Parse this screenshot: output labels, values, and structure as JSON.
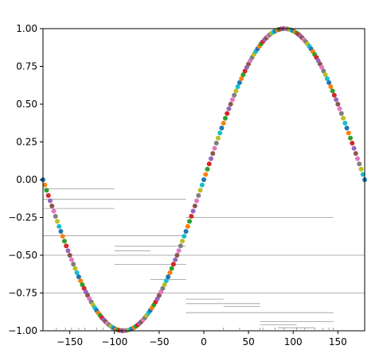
{
  "chart_data": {
    "type": "scatter",
    "title": "",
    "xlabel": "",
    "ylabel": "",
    "xlim": [
      -180,
      180
    ],
    "ylim": [
      -1.0,
      1.0
    ],
    "grid": false,
    "legend": "none",
    "x_ticks": [
      -150,
      -100,
      -50,
      0,
      50,
      100,
      150
    ],
    "x_tick_labels": [
      "−150",
      "−100",
      "−50",
      "0",
      "50",
      "100",
      "150"
    ],
    "y_ticks": [
      1.0,
      0.75,
      0.5,
      0.25,
      0.0,
      -0.25,
      -0.5,
      -0.75,
      -1.0
    ],
    "y_tick_labels": [
      "1.00",
      "0.75",
      "0.50",
      "0.25",
      "0.00",
      "−0.25",
      "−0.50",
      "−0.75",
      "−1.00"
    ],
    "series": [
      {
        "function": "sin(x°)",
        "x_start": -180,
        "x_end": 180,
        "x_step": 2
      }
    ],
    "marker_colors": [
      "#1f77b4",
      "#ff7f0e",
      "#2ca02c",
      "#d62728",
      "#9467bd",
      "#8c564b",
      "#e377c2",
      "#7f7f7f",
      "#bcbd22",
      "#17becf"
    ],
    "horizontal_lines": [
      {
        "y": -0.06,
        "x1": -180,
        "x2": -100
      },
      {
        "y": -0.13,
        "x1": -180,
        "x2": -20
      },
      {
        "y": -0.19,
        "x1": -180,
        "x2": -100
      },
      {
        "y": -0.25,
        "x1": -20,
        "x2": 145
      },
      {
        "y": -0.37,
        "x1": -180,
        "x2": -20
      },
      {
        "y": -0.44,
        "x1": -100,
        "x2": -20
      },
      {
        "y": -0.47,
        "x1": -100,
        "x2": -60
      },
      {
        "y": -0.5,
        "x1": -180,
        "x2": 180
      },
      {
        "y": -0.56,
        "x1": -100,
        "x2": -20
      },
      {
        "y": -0.66,
        "x1": -60,
        "x2": -20
      },
      {
        "y": -0.75,
        "x1": -180,
        "x2": 180
      },
      {
        "y": -0.79,
        "x1": -20,
        "x2": 22
      },
      {
        "y": -0.82,
        "x1": -20,
        "x2": 63
      },
      {
        "y": -0.84,
        "x1": 22,
        "x2": 63
      },
      {
        "y": -0.88,
        "x1": -20,
        "x2": 145
      },
      {
        "y": -0.94,
        "x1": 63,
        "x2": 145
      },
      {
        "y": -0.96,
        "x1": 63,
        "x2": 104
      },
      {
        "y": -0.98,
        "x1": 83,
        "x2": 124
      }
    ],
    "minor_ticks_x": [
      -165,
      -155,
      -148,
      -140,
      -133,
      -120,
      -113,
      -104,
      -98,
      -90,
      22,
      40,
      63,
      66,
      80,
      90,
      104,
      113,
      124,
      133,
      140,
      145
    ]
  }
}
